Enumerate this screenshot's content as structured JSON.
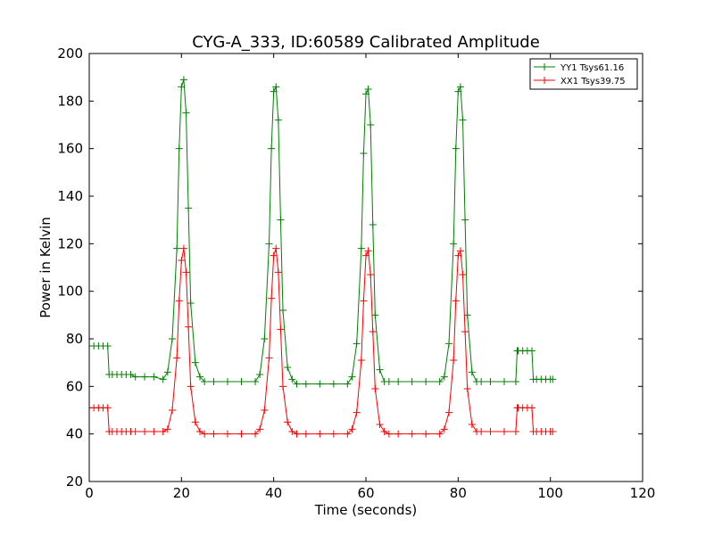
{
  "chart_data": {
    "type": "line",
    "title": "CYG-A_333, ID:60589 Calibrated Amplitude",
    "xlabel": "Time (seconds)",
    "ylabel": "Power in Kelvin",
    "xlim": [
      0,
      120
    ],
    "ylim": [
      20,
      200
    ],
    "xticks": [
      0,
      20,
      40,
      60,
      80,
      100,
      120
    ],
    "yticks": [
      20,
      40,
      60,
      80,
      100,
      120,
      140,
      160,
      180,
      200
    ],
    "grid": false,
    "legend_position": "top-right",
    "marker": "plus",
    "series": [
      {
        "name": "YY1 Tsys61.16",
        "color": "#008000",
        "x": [
          0,
          1,
          2,
          3,
          4,
          4.3,
          5,
          6,
          7,
          8,
          9,
          10,
          12,
          14,
          16,
          17,
          18,
          19,
          19.5,
          20,
          20.5,
          21,
          21.5,
          22,
          23,
          24,
          25,
          27,
          30,
          33,
          36,
          37,
          38,
          39,
          39.5,
          40,
          40.5,
          41,
          41.5,
          42,
          43,
          44,
          45,
          47,
          50,
          53,
          56,
          57,
          58,
          59,
          59.5,
          60,
          60.5,
          61,
          61.5,
          62,
          63,
          64,
          65,
          67,
          70,
          73,
          76,
          77,
          78,
          79,
          79.5,
          80,
          80.5,
          81,
          81.5,
          82,
          83,
          84,
          85,
          87,
          90,
          92.5,
          92.8,
          93,
          94,
          95,
          96,
          96.3,
          97,
          98,
          99,
          100,
          100.5
        ],
        "y": [
          77,
          77,
          77,
          77,
          77,
          65,
          65,
          65,
          65,
          65,
          65,
          64,
          64,
          64,
          63,
          66,
          80,
          118,
          160,
          186,
          189,
          175,
          135,
          95,
          70,
          64,
          62,
          62,
          62,
          62,
          62,
          65,
          80,
          120,
          160,
          184,
          186,
          172,
          130,
          92,
          68,
          63,
          61,
          61,
          61,
          61,
          61,
          64,
          78,
          118,
          158,
          183,
          185,
          170,
          128,
          90,
          67,
          62,
          62,
          62,
          62,
          62,
          62,
          64,
          78,
          120,
          160,
          184,
          186,
          172,
          130,
          90,
          66,
          62,
          62,
          62,
          62,
          62,
          75,
          75,
          75,
          75,
          75,
          63,
          63,
          63,
          63,
          63,
          63
        ]
      },
      {
        "name": "XX1 Tsys39.75",
        "color": "#ff0000",
        "x": [
          0,
          1,
          2,
          3,
          4,
          4.3,
          5,
          6,
          7,
          8,
          9,
          10,
          12,
          14,
          16,
          17,
          18,
          19,
          19.5,
          20,
          20.5,
          21,
          21.5,
          22,
          23,
          24,
          25,
          27,
          30,
          33,
          36,
          37,
          38,
          39,
          39.5,
          40,
          40.5,
          41,
          41.5,
          42,
          43,
          44,
          45,
          47,
          50,
          53,
          56,
          57,
          58,
          59,
          59.5,
          60,
          60.5,
          61,
          61.5,
          62,
          63,
          64,
          65,
          67,
          70,
          73,
          76,
          77,
          78,
          79,
          79.5,
          80,
          80.5,
          81,
          81.5,
          82,
          83,
          84,
          85,
          87,
          90,
          92.5,
          92.8,
          93,
          94,
          95,
          96,
          96.3,
          97,
          98,
          99,
          100,
          100.5
        ],
        "y": [
          51,
          51,
          51,
          51,
          51,
          41,
          41,
          41,
          41,
          41,
          41,
          41,
          41,
          41,
          41,
          42,
          50,
          72,
          96,
          113,
          118,
          108,
          85,
          60,
          45,
          41,
          40,
          40,
          40,
          40,
          40,
          42,
          50,
          72,
          97,
          115,
          118,
          108,
          84,
          60,
          45,
          41,
          40,
          40,
          40,
          40,
          40,
          42,
          49,
          71,
          96,
          115,
          117,
          107,
          83,
          59,
          44,
          41,
          40,
          40,
          40,
          40,
          40,
          42,
          49,
          71,
          96,
          115,
          117,
          107,
          83,
          59,
          44,
          41,
          41,
          41,
          41,
          41,
          51,
          51,
          51,
          51,
          51,
          41,
          41,
          41,
          41,
          41,
          41
        ]
      }
    ]
  }
}
